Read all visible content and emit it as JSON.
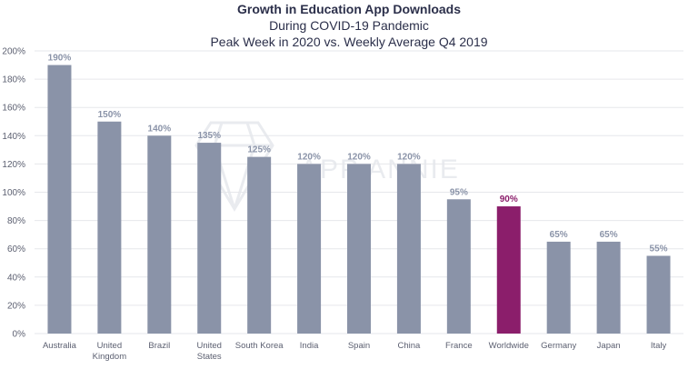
{
  "header": {
    "title": "Growth in Education App Downloads",
    "subtitle": "During COVID-19 Pandemic",
    "subtitle2": "Peak Week in 2020 vs. Weekly Average Q4 2019"
  },
  "watermark": "APP ANNIE",
  "colors": {
    "bar": "#8a93a8",
    "highlight": "#8b1e6b",
    "label": "#8a93a8"
  },
  "chart_data": {
    "type": "bar",
    "title": "Growth in Education App Downloads",
    "xlabel": "",
    "ylabel": "",
    "ylim": [
      0,
      200
    ],
    "yticks": [
      "0%",
      "20%",
      "40%",
      "60%",
      "80%",
      "100%",
      "120%",
      "140%",
      "160%",
      "180%",
      "200%"
    ],
    "grid": true,
    "highlight_category": "Worldwide",
    "categories": [
      "Australia",
      "United Kingdom",
      "Brazil",
      "United States",
      "South Korea",
      "India",
      "Spain",
      "China",
      "France",
      "Worldwide",
      "Germany",
      "Japan",
      "Italy"
    ],
    "category_lines": [
      [
        "Australia"
      ],
      [
        "United",
        "Kingdom"
      ],
      [
        "Brazil"
      ],
      [
        "United",
        "States"
      ],
      [
        "South Korea"
      ],
      [
        "India"
      ],
      [
        "Spain"
      ],
      [
        "China"
      ],
      [
        "France"
      ],
      [
        "Worldwide"
      ],
      [
        "Germany"
      ],
      [
        "Japan"
      ],
      [
        "Italy"
      ]
    ],
    "values": [
      190,
      150,
      140,
      135,
      125,
      120,
      120,
      120,
      95,
      90,
      65,
      65,
      55
    ],
    "value_labels": [
      "190%",
      "150%",
      "140%",
      "135%",
      "125%",
      "120%",
      "120%",
      "120%",
      "95%",
      "90%",
      "65%",
      "65%",
      "55%"
    ]
  }
}
